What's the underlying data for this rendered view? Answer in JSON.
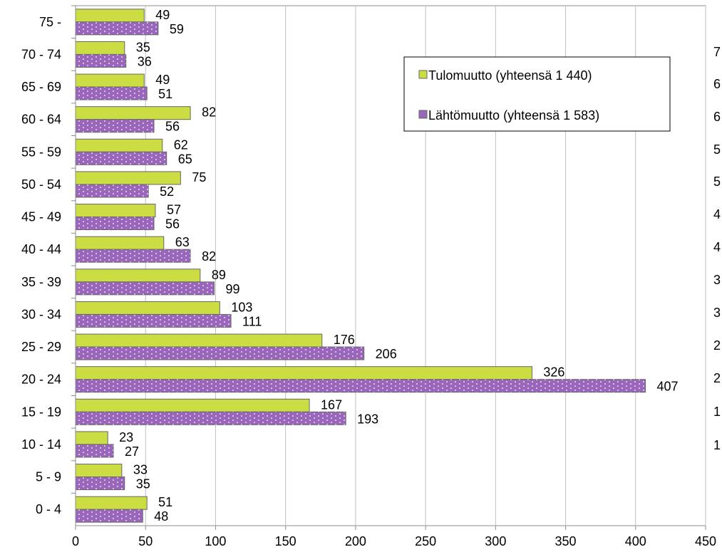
{
  "chart_data": {
    "type": "bar",
    "orientation": "horizontal",
    "title": "",
    "xlabel": "",
    "ylabel": "",
    "categories": [
      "75 -",
      "70 - 74",
      "65 - 69",
      "60 - 64",
      "55 - 59",
      "50 - 54",
      "45 - 49",
      "40 - 44",
      "35 - 39",
      "30 - 34",
      "25 - 29",
      "20 - 24",
      "15 - 19",
      "10 - 14",
      "5 - 9",
      "0 - 4"
    ],
    "series": [
      {
        "name": "Tulomuutto (yhteensä 1 440)",
        "color": "#ccdd44",
        "values": [
          49,
          35,
          49,
          82,
          62,
          75,
          57,
          63,
          89,
          103,
          176,
          326,
          167,
          23,
          33,
          51
        ]
      },
      {
        "name": "Lähtömuutto (yhteensä 1 583)",
        "color": "#9966bb",
        "values": [
          59,
          36,
          51,
          56,
          65,
          52,
          56,
          82,
          99,
          111,
          206,
          407,
          193,
          27,
          35,
          48
        ]
      }
    ],
    "xlim": [
      0,
      450
    ],
    "xticks": [
      0,
      50,
      100,
      150,
      200,
      250,
      300,
      350,
      400,
      450
    ],
    "grid": "vertical",
    "legend_position": "top-right",
    "clipped_right_axis_labels": [
      "7",
      "6",
      "6",
      "5",
      "5",
      "4",
      "4",
      "3",
      "3",
      "2",
      "2",
      "1",
      "1"
    ]
  }
}
